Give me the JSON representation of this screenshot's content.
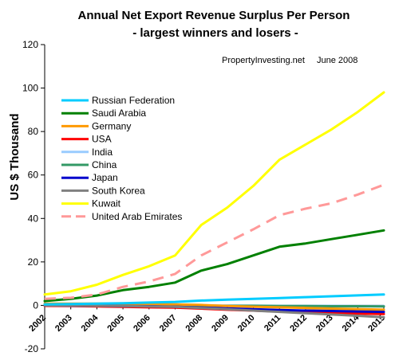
{
  "chart_data": {
    "type": "line",
    "title": "Annual Net Export Revenue Surplus Per Person",
    "subtitle": "-  largest winners and losers -",
    "annotation_source": "PropertyInvesting.net",
    "annotation_date": "June 2008",
    "ylabel": "US $ Thousand",
    "xlabel": "",
    "ylim": [
      -20,
      120
    ],
    "yticks": [
      "-20",
      "0",
      "20",
      "40",
      "60",
      "80",
      "100",
      "120"
    ],
    "x": [
      "2002",
      "2003",
      "2004",
      "2005",
      "2006",
      "2007",
      "2008",
      "2009",
      "2010",
      "2011",
      "2012",
      "2013",
      "2014",
      "2015"
    ],
    "grid": false,
    "legend_position": "left",
    "series": [
      {
        "name": "Russian Federation",
        "color": "#00ccff",
        "dash": "none",
        "values": [
          0.5,
          0.6,
          0.8,
          1.0,
          1.3,
          1.6,
          2.2,
          2.6,
          3.0,
          3.4,
          3.8,
          4.2,
          4.6,
          5.0
        ]
      },
      {
        "name": "Saudi Arabia",
        "color": "#008000",
        "dash": "none",
        "values": [
          2.0,
          3.0,
          4.5,
          7.0,
          8.5,
          10.5,
          16.0,
          19.0,
          23.0,
          27.0,
          28.5,
          30.5,
          32.5,
          34.5
        ]
      },
      {
        "name": "Germany",
        "color": "#ff9900",
        "dash": "none",
        "values": [
          0.8,
          0.8,
          0.8,
          0.7,
          0.6,
          0.4,
          0.2,
          -0.3,
          -0.6,
          -0.9,
          -1.2,
          -1.5,
          -1.7,
          -2.0
        ]
      },
      {
        "name": "USA",
        "color": "#ff0000",
        "dash": "none",
        "values": [
          -0.2,
          -0.3,
          -0.5,
          -0.7,
          -0.9,
          -1.0,
          -1.5,
          -2.0,
          -2.4,
          -2.8,
          -3.2,
          -3.5,
          -3.8,
          -4.0
        ]
      },
      {
        "name": "India",
        "color": "#99ccff",
        "dash": "none",
        "values": [
          0.0,
          0.0,
          0.0,
          0.0,
          0.0,
          0.0,
          -0.1,
          -0.1,
          -0.1,
          -0.2,
          -0.2,
          -0.2,
          -0.3,
          -0.3
        ]
      },
      {
        "name": "China",
        "color": "#339966",
        "dash": "none",
        "values": [
          0.0,
          0.0,
          0.0,
          0.0,
          0.0,
          -0.1,
          -0.1,
          -0.2,
          -0.2,
          -0.3,
          -0.3,
          -0.4,
          -0.4,
          -0.5
        ]
      },
      {
        "name": "Japan",
        "color": "#0000cc",
        "dash": "none",
        "values": [
          0.0,
          -0.1,
          -0.2,
          -0.3,
          -0.4,
          -0.6,
          -1.0,
          -1.4,
          -1.8,
          -2.1,
          -2.4,
          -2.6,
          -2.8,
          -3.0
        ]
      },
      {
        "name": "South Korea",
        "color": "#808080",
        "dash": "none",
        "values": [
          0.0,
          -0.1,
          -0.2,
          -0.3,
          -0.5,
          -0.7,
          -1.2,
          -1.8,
          -2.4,
          -3.0,
          -3.6,
          -4.2,
          -4.8,
          -5.5
        ]
      },
      {
        "name": "Kuwait",
        "color": "#ffff00",
        "dash": "none",
        "values": [
          5.0,
          6.5,
          9.5,
          14.0,
          18.0,
          23.0,
          37.0,
          45.0,
          55.0,
          67.0,
          74.0,
          81.0,
          89.0,
          98.0
        ]
      },
      {
        "name": "United Arab Emirates",
        "color": "#ff9999",
        "dash": "dashed",
        "values": [
          3.0,
          3.5,
          5.0,
          8.5,
          11.0,
          14.5,
          23.0,
          29.0,
          35.0,
          41.5,
          44.5,
          47.0,
          51.0,
          55.5
        ]
      }
    ]
  }
}
